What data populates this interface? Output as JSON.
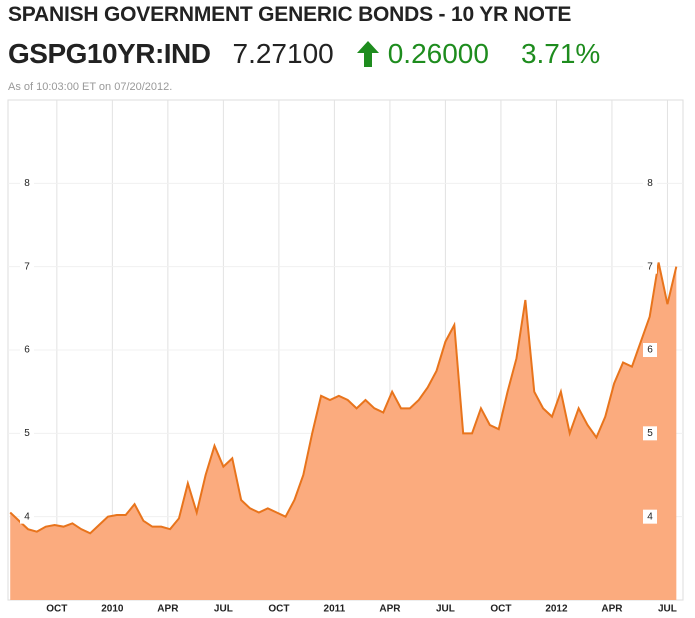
{
  "header": {
    "title": "SPANISH GOVERNMENT GENERIC BONDS - 10 YR NOTE",
    "ticker": "GSPG10YR:IND",
    "price": "7.27100",
    "change": "0.26000",
    "percent": "3.71%",
    "as_of": "As of 10:03:00 ET on 07/20/2012."
  },
  "chart_data": {
    "type": "area",
    "color": "#fbab7e",
    "line_color": "#e8741c",
    "x": [
      2009.54,
      2009.58,
      2009.62,
      2009.66,
      2009.7,
      2009.74,
      2009.78,
      2009.82,
      2009.86,
      2009.9,
      2009.94,
      2009.98,
      2010.02,
      2010.06,
      2010.1,
      2010.14,
      2010.18,
      2010.22,
      2010.26,
      2010.3,
      2010.34,
      2010.38,
      2010.42,
      2010.46,
      2010.5,
      2010.54,
      2010.58,
      2010.62,
      2010.66,
      2010.7,
      2010.74,
      2010.78,
      2010.82,
      2010.86,
      2010.9,
      2010.94,
      2010.98,
      2011.02,
      2011.06,
      2011.1,
      2011.14,
      2011.18,
      2011.22,
      2011.26,
      2011.3,
      2011.34,
      2011.38,
      2011.42,
      2011.46,
      2011.5,
      2011.54,
      2011.58,
      2011.62,
      2011.66,
      2011.7,
      2011.74,
      2011.78,
      2011.82,
      2011.86,
      2011.9,
      2011.94,
      2011.98,
      2012.02,
      2012.06,
      2012.1,
      2012.14,
      2012.18,
      2012.22,
      2012.26,
      2012.3,
      2012.34,
      2012.38,
      2012.42,
      2012.46,
      2012.5,
      2012.54
    ],
    "values": [
      4.05,
      3.95,
      3.85,
      3.82,
      3.88,
      3.9,
      3.88,
      3.92,
      3.85,
      3.8,
      3.9,
      4.0,
      4.02,
      4.02,
      4.15,
      3.95,
      3.88,
      3.88,
      3.85,
      3.98,
      4.4,
      4.05,
      4.5,
      4.85,
      4.6,
      4.7,
      4.2,
      4.1,
      4.05,
      4.1,
      4.05,
      4.0,
      4.2,
      4.5,
      5.0,
      5.45,
      5.4,
      5.45,
      5.4,
      5.3,
      5.4,
      5.3,
      5.25,
      5.5,
      5.3,
      5.3,
      5.4,
      5.55,
      5.75,
      6.1,
      6.3,
      5.0,
      5.0,
      5.3,
      5.1,
      5.05,
      5.5,
      5.9,
      6.6,
      5.5,
      5.3,
      5.2,
      5.5,
      5.0,
      5.3,
      5.1,
      4.95,
      5.2,
      5.6,
      5.85,
      5.8,
      6.1,
      6.4,
      7.05,
      6.55,
      7.0
    ],
    "xlim": [
      2009.53,
      2012.57
    ],
    "xticks": [
      {
        "value": 2009.75,
        "label": "OCT"
      },
      2010,
      {
        "value": 2010.25,
        "label": "APR"
      },
      {
        "value": 2010.5,
        "label": "JUL"
      },
      {
        "value": 2010.75,
        "label": "OCT"
      },
      2011,
      {
        "value": 2011.25,
        "label": "APR"
      },
      {
        "value": 2011.5,
        "label": "JUL"
      },
      {
        "value": 2011.75,
        "label": "OCT"
      },
      2012,
      {
        "value": 2012.25,
        "label": "APR"
      },
      {
        "value": 2012.5,
        "label": "JUL"
      }
    ],
    "ylim": [
      3,
      9
    ],
    "yticks": [
      4,
      5,
      6,
      7,
      8
    ],
    "grid": true
  }
}
